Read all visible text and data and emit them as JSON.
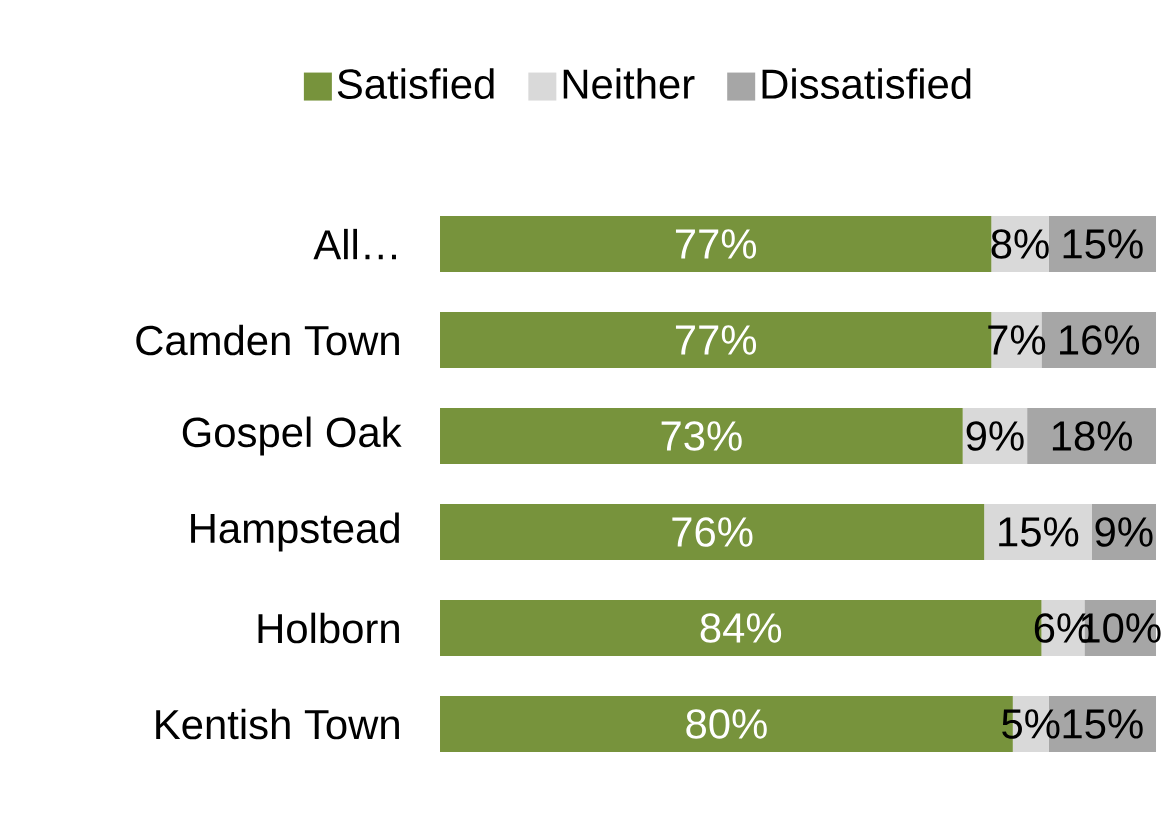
{
  "chart_data": {
    "type": "bar",
    "orientation": "horizontal",
    "stacked": true,
    "categories": [
      "All…",
      "Camden Town",
      "Gospel Oak",
      "Hampstead",
      "Holborn",
      "Kentish Town"
    ],
    "series": [
      {
        "name": "Satisfied",
        "color": "#77933c",
        "values": [
          77,
          77,
          73,
          76,
          84,
          80
        ],
        "value_labels": [
          "77%",
          "77%",
          "73%",
          "76%",
          "84%",
          "80%"
        ]
      },
      {
        "name": "Neither",
        "color": "#d9d9d9",
        "values": [
          8,
          7,
          9,
          15,
          6,
          5
        ],
        "value_labels": [
          "8%",
          "7%",
          "9%",
          "15%",
          "6%",
          "5%"
        ]
      },
      {
        "name": "Dissatisfied",
        "color": "#a6a6a6",
        "values": [
          15,
          16,
          18,
          9,
          10,
          15
        ],
        "value_labels": [
          "15%",
          "16%",
          "18%",
          "9%",
          "10%",
          "15%"
        ]
      }
    ],
    "xlim": [
      0,
      100
    ],
    "tick_labels": "y",
    "legend": "top",
    "grid": false
  }
}
